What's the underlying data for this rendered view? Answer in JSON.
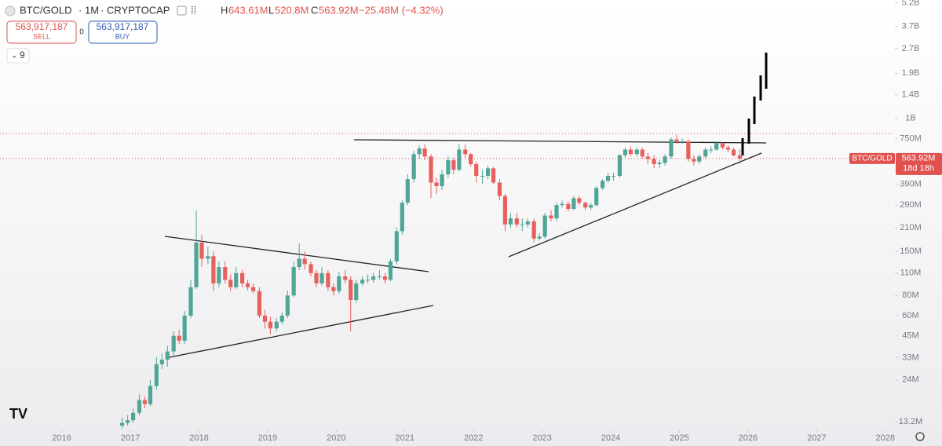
{
  "header": {
    "symbol": "BTC/GOLD",
    "interval": "1M",
    "source": "CRYPTOCAP",
    "ohlc": [
      {
        "key": "H",
        "value": "643.61M"
      },
      {
        "key": "L",
        "value": "520.8M"
      },
      {
        "key": "C",
        "value": "563.92M"
      }
    ],
    "change": "−25.48M (−4.32%)"
  },
  "trade": {
    "sell_price": "563,917,187",
    "sell": "SELL",
    "spread": "0",
    "buy_price": "563,917,187",
    "buy": "BUY"
  },
  "indicators": "9",
  "chart_data": {
    "type": "candlestick",
    "log_scale": true,
    "grid": false,
    "up_color": "#4fa596",
    "down_color": "#e8605c",
    "x": [
      2016.88,
      2016.96,
      2017.04,
      2017.13,
      2017.21,
      2017.29,
      2017.38,
      2017.46,
      2017.54,
      2017.63,
      2017.71,
      2017.79,
      2017.88,
      2017.96,
      2018.04,
      2018.13,
      2018.21,
      2018.29,
      2018.38,
      2018.46,
      2018.54,
      2018.63,
      2018.71,
      2018.79,
      2018.88,
      2018.96,
      2019.04,
      2019.13,
      2019.21,
      2019.29,
      2019.38,
      2019.46,
      2019.54,
      2019.63,
      2019.71,
      2019.79,
      2019.88,
      2019.96,
      2020.04,
      2020.13,
      2020.21,
      2020.29,
      2020.38,
      2020.46,
      2020.54,
      2020.63,
      2020.71,
      2020.79,
      2020.88,
      2020.96,
      2021.04,
      2021.13,
      2021.21,
      2021.29,
      2021.38,
      2021.46,
      2021.54,
      2021.63,
      2021.71,
      2021.79,
      2021.88,
      2021.96,
      2022.04,
      2022.13,
      2022.21,
      2022.29,
      2022.38,
      2022.46,
      2022.54,
      2022.63,
      2022.71,
      2022.79,
      2022.88,
      2022.96,
      2023.04,
      2023.13,
      2023.21,
      2023.29,
      2023.38,
      2023.46,
      2023.54,
      2023.63,
      2023.71,
      2023.79,
      2023.88,
      2023.96,
      2024.04,
      2024.13,
      2024.21,
      2024.29,
      2024.38,
      2024.46,
      2024.54,
      2024.63,
      2024.71,
      2024.79,
      2024.88,
      2024.96,
      2025.04,
      2025.13,
      2025.21,
      2025.29,
      2025.38,
      2025.46,
      2025.54,
      2025.63,
      2025.71,
      2025.79,
      2025.88
    ],
    "open": [
      12500000.0,
      13000000.0,
      13500000.0,
      15000000.0,
      18000000.0,
      17000000.0,
      22000000.0,
      30000000.0,
      32000000.0,
      36000000.0,
      45000000.0,
      42000000.0,
      60000000.0,
      90000000.0,
      170000000.0,
      135000000.0,
      140000000.0,
      95000000.0,
      120000000.0,
      100000000.0,
      90000000.0,
      110000000.0,
      95000000.0,
      90000000.0,
      85000000.0,
      60000000.0,
      55000000.0,
      50000000.0,
      55000000.0,
      60000000.0,
      80000000.0,
      120000000.0,
      135000000.0,
      125000000.0,
      110000000.0,
      95000000.0,
      110000000.0,
      90000000.0,
      85000000.0,
      105000000.0,
      100000000.0,
      75000000.0,
      95000000.0,
      100000000.0,
      100000000.0,
      105000000.0,
      105000000.0,
      100000000.0,
      130000000.0,
      200000000.0,
      300000000.0,
      420000000.0,
      600000000.0,
      650000000.0,
      580000000.0,
      400000000.0,
      380000000.0,
      450000000.0,
      550000000.0,
      480000000.0,
      640000000.0,
      600000000.0,
      520000000.0,
      440000000.0,
      440000000.0,
      490000000.0,
      400000000.0,
      330000000.0,
      220000000.0,
      240000000.0,
      220000000.0,
      220000000.0,
      230000000.0,
      180000000.0,
      185000000.0,
      250000000.0,
      240000000.0,
      290000000.0,
      295000000.0,
      275000000.0,
      320000000.0,
      300000000.0,
      280000000.0,
      290000000.0,
      370000000.0,
      410000000.0,
      440000000.0,
      440000000.0,
      590000000.0,
      640000000.0,
      600000000.0,
      640000000.0,
      580000000.0,
      560000000.0,
      520000000.0,
      530000000.0,
      580000000.0,
      740000000.0,
      720000000.0,
      720000000.0,
      560000000.0,
      540000000.0,
      580000000.0,
      640000000.0,
      640000000.0,
      700000000.0,
      660000000.0,
      640000000.0,
      589400000.0
    ],
    "high": [
      14000000.0,
      14500000.0,
      16000000.0,
      19500000.0,
      19000000.0,
      24000000.0,
      33000000.0,
      35000000.0,
      39000000.0,
      48000000.0,
      49000000.0,
      64000000.0,
      100000000.0,
      268000000.0,
      190000000.0,
      160000000.0,
      150000000.0,
      130000000.0,
      130000000.0,
      108000000.0,
      120000000.0,
      115000000.0,
      100000000.0,
      95000000.0,
      90000000.0,
      65000000.0,
      59000000.0,
      58000000.0,
      63000000.0,
      86000000.0,
      130000000.0,
      168000000.0,
      150000000.0,
      130000000.0,
      115000000.0,
      120000000.0,
      115000000.0,
      95000000.0,
      112000000.0,
      115000000.0,
      105000000.0,
      100000000.0,
      105000000.0,
      108000000.0,
      110000000.0,
      115000000.0,
      110000000.0,
      135000000.0,
      210000000.0,
      310000000.0,
      450000000.0,
      630000000.0,
      680000000.0,
      690000000.0,
      600000000.0,
      430000000.0,
      480000000.0,
      580000000.0,
      570000000.0,
      690000000.0,
      690000000.0,
      610000000.0,
      540000000.0,
      480000000.0,
      510000000.0,
      500000000.0,
      420000000.0,
      340000000.0,
      260000000.0,
      260000000.0,
      240000000.0,
      240000000.0,
      240000000.0,
      195000000.0,
      260000000.0,
      270000000.0,
      300000000.0,
      310000000.0,
      305000000.0,
      330000000.0,
      330000000.0,
      305000000.0,
      300000000.0,
      380000000.0,
      420000000.0,
      460000000.0,
      460000000.0,
      600000000.0,
      660000000.0,
      670000000.0,
      660000000.0,
      660000000.0,
      610000000.0,
      590000000.0,
      550000000.0,
      600000000.0,
      760000000.0,
      790000000.0,
      750000000.0,
      740000000.0,
      590000000.0,
      600000000.0,
      660000000.0,
      670000000.0,
      720000000.0,
      710000000.0,
      680000000.0,
      660000000.0,
      643610000.0
    ],
    "low": [
      12000000.0,
      12500000.0,
      13000000.0,
      14500000.0,
      16000000.0,
      16500000.0,
      21000000.0,
      28000000.0,
      29000000.0,
      34000000.0,
      40000000.0,
      40000000.0,
      58000000.0,
      88000000.0,
      120000000.0,
      125000000.0,
      85000000.0,
      90000000.0,
      95000000.0,
      85000000.0,
      88000000.0,
      90000000.0,
      86000000.0,
      82000000.0,
      58000000.0,
      50000000.0,
      46000000.0,
      48000000.0,
      53000000.0,
      58000000.0,
      78000000.0,
      115000000.0,
      115000000.0,
      105000000.0,
      90000000.0,
      92000000.0,
      85000000.0,
      80000000.0,
      82000000.0,
      95000000.0,
      48000000.0,
      72000000.0,
      92000000.0,
      95000000.0,
      96000000.0,
      100000000.0,
      95000000.0,
      98000000.0,
      125000000.0,
      190000000.0,
      290000000.0,
      400000000.0,
      560000000.0,
      550000000.0,
      320000000.0,
      340000000.0,
      360000000.0,
      430000000.0,
      450000000.0,
      470000000.0,
      570000000.0,
      500000000.0,
      400000000.0,
      390000000.0,
      420000000.0,
      390000000.0,
      310000000.0,
      200000000.0,
      210000000.0,
      210000000.0,
      200000000.0,
      210000000.0,
      170000000.0,
      175000000.0,
      180000000.0,
      230000000.0,
      230000000.0,
      280000000.0,
      265000000.0,
      270000000.0,
      290000000.0,
      270000000.0,
      270000000.0,
      285000000.0,
      360000000.0,
      400000000.0,
      410000000.0,
      430000000.0,
      570000000.0,
      580000000.0,
      580000000.0,
      560000000.0,
      520000000.0,
      490000000.0,
      490000000.0,
      510000000.0,
      560000000.0,
      690000000.0,
      690000000.0,
      540000000.0,
      510000000.0,
      520000000.0,
      560000000.0,
      610000000.0,
      630000000.0,
      640000000.0,
      620000000.0,
      580000000.0,
      520800000.0
    ],
    "close": [
      13000000.0,
      13500000.0,
      15000000.0,
      18000000.0,
      17000000.0,
      22000000.0,
      30000000.0,
      32000000.0,
      36000000.0,
      45000000.0,
      42000000.0,
      60000000.0,
      90000000.0,
      170000000.0,
      135000000.0,
      140000000.0,
      95000000.0,
      120000000.0,
      100000000.0,
      90000000.0,
      110000000.0,
      95000000.0,
      90000000.0,
      85000000.0,
      60000000.0,
      55000000.0,
      50000000.0,
      55000000.0,
      60000000.0,
      80000000.0,
      120000000.0,
      135000000.0,
      125000000.0,
      110000000.0,
      95000000.0,
      110000000.0,
      90000000.0,
      85000000.0,
      105000000.0,
      100000000.0,
      75000000.0,
      95000000.0,
      100000000.0,
      100000000.0,
      105000000.0,
      105000000.0,
      100000000.0,
      130000000.0,
      200000000.0,
      300000000.0,
      420000000.0,
      600000000.0,
      650000000.0,
      580000000.0,
      400000000.0,
      380000000.0,
      450000000.0,
      550000000.0,
      480000000.0,
      640000000.0,
      600000000.0,
      520000000.0,
      440000000.0,
      440000000.0,
      490000000.0,
      400000000.0,
      330000000.0,
      220000000.0,
      240000000.0,
      220000000.0,
      220000000.0,
      230000000.0,
      180000000.0,
      185000000.0,
      250000000.0,
      240000000.0,
      290000000.0,
      295000000.0,
      275000000.0,
      320000000.0,
      300000000.0,
      280000000.0,
      290000000.0,
      370000000.0,
      410000000.0,
      440000000.0,
      440000000.0,
      590000000.0,
      640000000.0,
      600000000.0,
      640000000.0,
      580000000.0,
      560000000.0,
      520000000.0,
      530000000.0,
      580000000.0,
      740000000.0,
      720000000.0,
      720000000.0,
      560000000.0,
      540000000.0,
      580000000.0,
      640000000.0,
      640000000.0,
      700000000.0,
      660000000.0,
      640000000.0,
      589400000.0,
      563920000.0
    ],
    "xlim": [
      2015.1,
      2028.14
    ],
    "xticks": [
      2016,
      2017,
      2018,
      2019,
      2020,
      2021,
      2022,
      2023,
      2024,
      2025,
      2026,
      2027,
      2028
    ],
    "ylim": [
      11700000.0,
      5400000000.0
    ],
    "yticks": [
      {
        "value": 13200000.0,
        "label": "13.2M"
      },
      {
        "value": 24000000.0,
        "label": "24M"
      },
      {
        "value": 33000000.0,
        "label": "33M"
      },
      {
        "value": 45000000.0,
        "label": "45M"
      },
      {
        "value": 60000000.0,
        "label": "60M"
      },
      {
        "value": 80000000.0,
        "label": "80M"
      },
      {
        "value": 110000000.0,
        "label": "110M"
      },
      {
        "value": 150000000.0,
        "label": "150M"
      },
      {
        "value": 210000000.0,
        "label": "210M"
      },
      {
        "value": 290000000.0,
        "label": "290M"
      },
      {
        "value": 390000000.0,
        "label": "390M"
      },
      {
        "value": 750000000.0,
        "label": "750M"
      },
      {
        "value": 1000000000.0,
        "label": "1B"
      },
      {
        "value": 1400000000.0,
        "label": "1.4B"
      },
      {
        "value": 1900000000.0,
        "label": "1.9B"
      },
      {
        "value": 2700000000.0,
        "label": "2.7B"
      },
      {
        "value": 3700000000.0,
        "label": "3.7B"
      },
      {
        "value": 5200000000.0,
        "label": "5.2B"
      }
    ],
    "last_price": {
      "value": 563920000.0,
      "label": "563.92M",
      "name": "BTC/GOLD",
      "countdown": "18d 18h"
    }
  }
}
